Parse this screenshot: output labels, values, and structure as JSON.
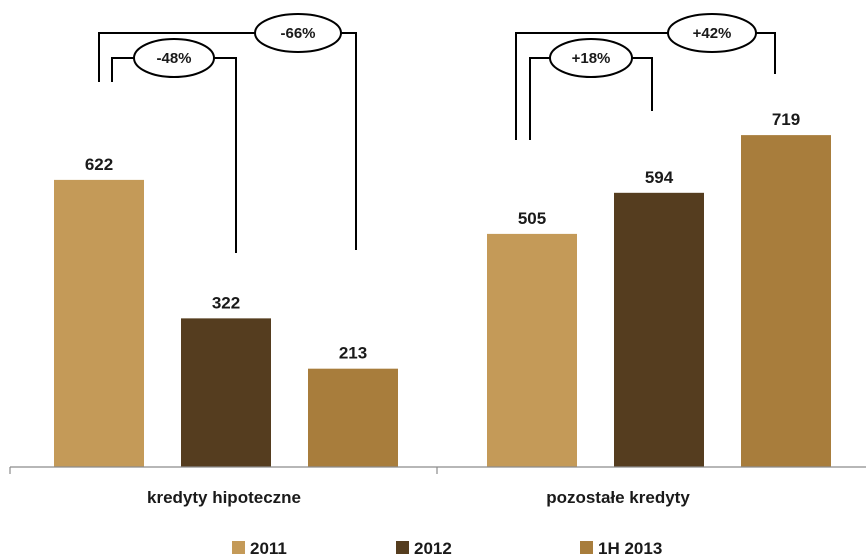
{
  "chart_data": {
    "type": "bar",
    "title": "",
    "xlabel": "",
    "ylabel": "",
    "ylim": [
      0,
      760
    ],
    "grid": false,
    "legend_position": "bottom",
    "categories": [
      "kredyty hipoteczne",
      "pozostałe kredyty"
    ],
    "series": [
      {
        "name": "2011",
        "values": [
          622,
          505
        ],
        "color": "#c49a58"
      },
      {
        "name": "2012",
        "values": [
          322,
          594
        ],
        "color": "#553d1f"
      },
      {
        "name": "1H 2013",
        "values": [
          213,
          719
        ],
        "color": "#a87d3c"
      }
    ],
    "annotations": [
      {
        "category": "kredyty hipoteczne",
        "from": "2011",
        "to": "2012",
        "label": "-48%"
      },
      {
        "category": "kredyty hipoteczne",
        "from": "2011",
        "to": "1H 2013",
        "label": "-66%"
      },
      {
        "category": "pozostałe kredyty",
        "from": "2011",
        "to": "2012",
        "label": "+18%"
      },
      {
        "category": "pozostałe kredyty",
        "from": "2011",
        "to": "1H 2013",
        "label": "+42%"
      }
    ]
  }
}
